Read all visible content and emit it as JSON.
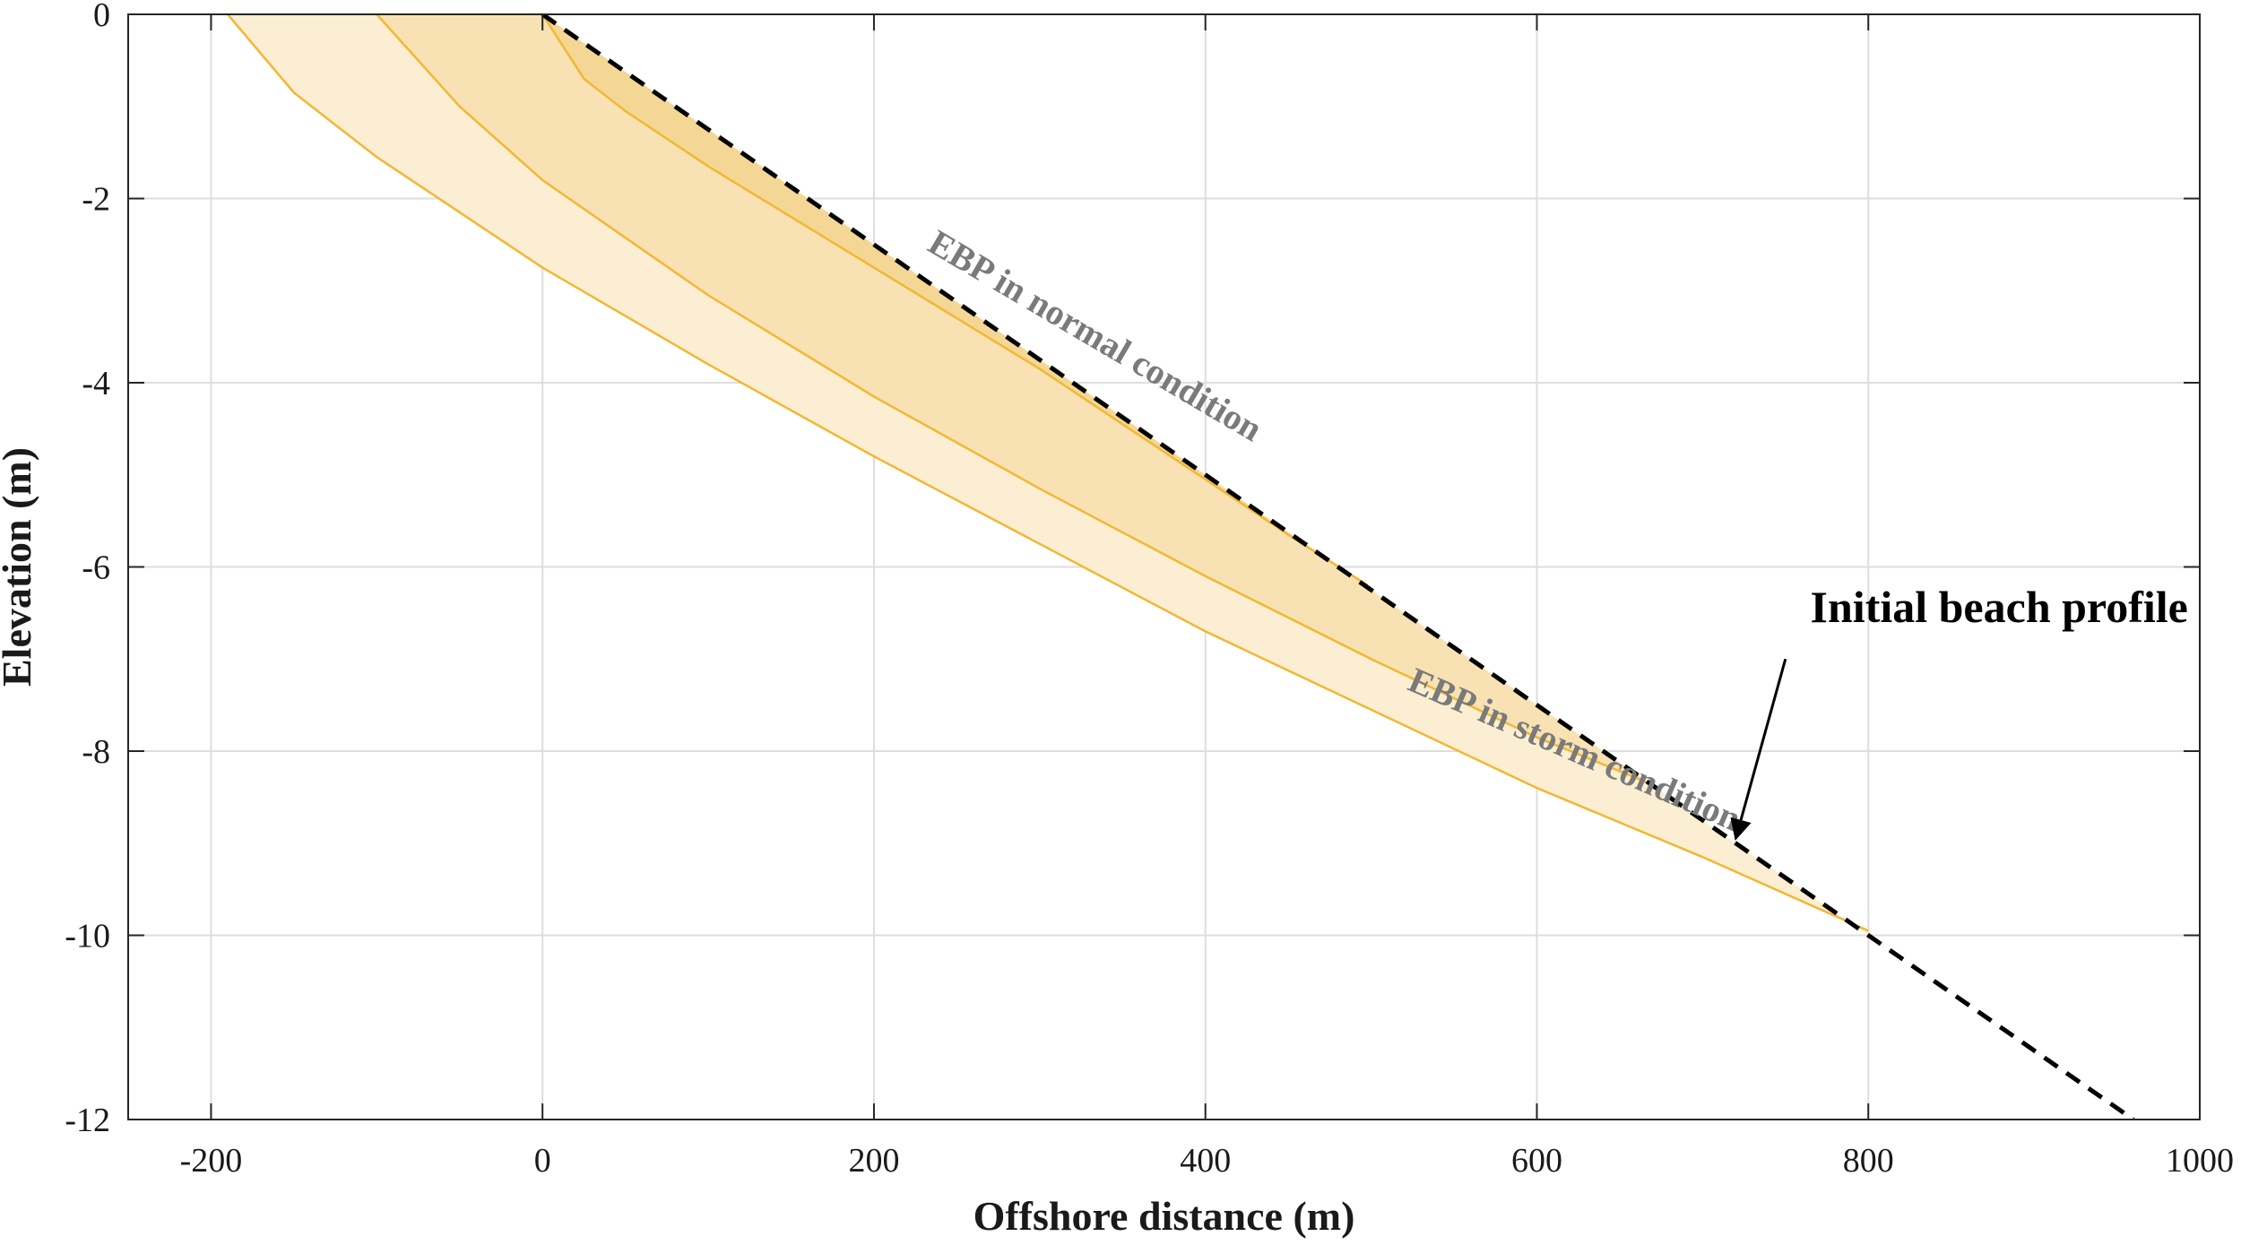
{
  "chart_data": {
    "type": "area",
    "xlabel": "Offshore distance (m)",
    "ylabel": "Elevation (m)",
    "xlim": [
      -250,
      1000
    ],
    "ylim": [
      -12,
      0
    ],
    "xticks": [
      -200,
      0,
      200,
      400,
      600,
      800,
      1000
    ],
    "yticks": [
      0,
      -2,
      -4,
      -6,
      -8,
      -10,
      -12
    ],
    "grid": true,
    "initial_profile": {
      "label": "Initial beach profile",
      "style": "dashed",
      "color": "#000000",
      "x": [
        0,
        960
      ],
      "y": [
        0,
        -12
      ]
    },
    "series": [
      {
        "region": "storm",
        "x": [
          -190,
          -150,
          -100,
          -50,
          0,
          100,
          200,
          300,
          400,
          500,
          600,
          700,
          800
        ],
        "y": [
          0,
          -0.85,
          -1.55,
          -2.15,
          -2.75,
          -3.8,
          -4.8,
          -5.75,
          -6.7,
          -7.55,
          -8.4,
          -9.15,
          -9.95
        ],
        "fill": "#fbeed2",
        "stroke": "#f2b733"
      },
      {
        "region": "middle",
        "x": [
          -100,
          -50,
          0,
          100,
          200,
          300,
          400,
          500,
          600,
          668
        ],
        "y": [
          0,
          -1.0,
          -1.8,
          -3.05,
          -4.15,
          -5.15,
          -6.1,
          -7.0,
          -7.85,
          -8.35
        ],
        "fill": "#f8e2b4",
        "stroke": "#f2b733"
      },
      {
        "region": "normal",
        "x": [
          0,
          25,
          50,
          100,
          150,
          200,
          250,
          300,
          350,
          400,
          450,
          498
        ],
        "y": [
          0,
          -0.7,
          -1.05,
          -1.65,
          -2.2,
          -2.75,
          -3.3,
          -3.85,
          -4.45,
          -5.05,
          -5.65,
          -6.2
        ],
        "fill": "#f4d795",
        "stroke": "#f2b733"
      }
    ],
    "annotations": [
      {
        "name": "normal",
        "text": "EBP in normal condition",
        "x": 330,
        "y": -3.6,
        "rotation": 30.5,
        "color": "#7a7a7a"
      },
      {
        "name": "storm",
        "text": "EBP in storm condition",
        "x": 620,
        "y": -8.1,
        "rotation": 23.5,
        "color": "#7a7a7a"
      },
      {
        "name": "initial",
        "text": "Initial beach profile",
        "x": 765,
        "y": -6.6,
        "rotation": 0,
        "color": "#000000",
        "arrow_from": [
          750,
          -7.0
        ],
        "arrow_to": [
          720,
          -8.95
        ]
      }
    ]
  }
}
